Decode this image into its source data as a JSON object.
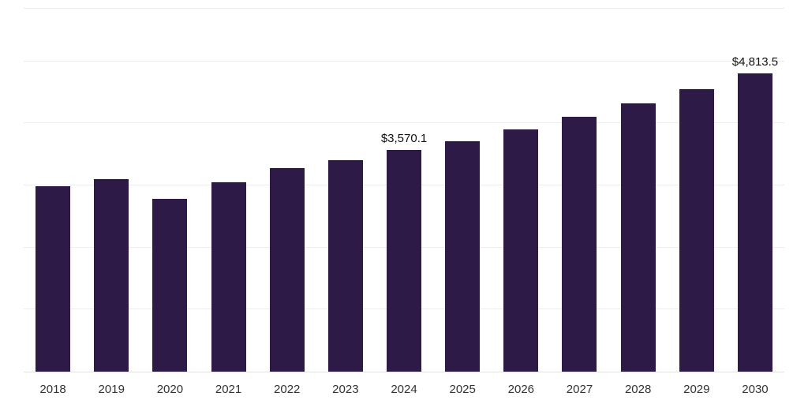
{
  "chart_data": {
    "type": "bar",
    "title": "",
    "xlabel": "",
    "ylabel": "",
    "categories": [
      "2018",
      "2019",
      "2020",
      "2021",
      "2022",
      "2023",
      "2024",
      "2025",
      "2026",
      "2027",
      "2028",
      "2029",
      "2030"
    ],
    "values": [
      2990,
      3105,
      2790,
      3055,
      3280,
      3410,
      3570.1,
      3710,
      3900,
      4105,
      4330,
      4550,
      4813.5
    ],
    "data_labels": [
      null,
      null,
      null,
      null,
      null,
      null,
      "$3,570.1",
      null,
      null,
      null,
      null,
      null,
      "$4,813.5"
    ],
    "ylim": [
      0,
      5850
    ],
    "gridline_step": 1000,
    "grid": true,
    "legend": "none",
    "bar_color": "#2E1A47",
    "gridline_color": "#EDEDED",
    "background": "#FFFFFF",
    "label_color": "#111111",
    "tick_color": "#333333"
  }
}
